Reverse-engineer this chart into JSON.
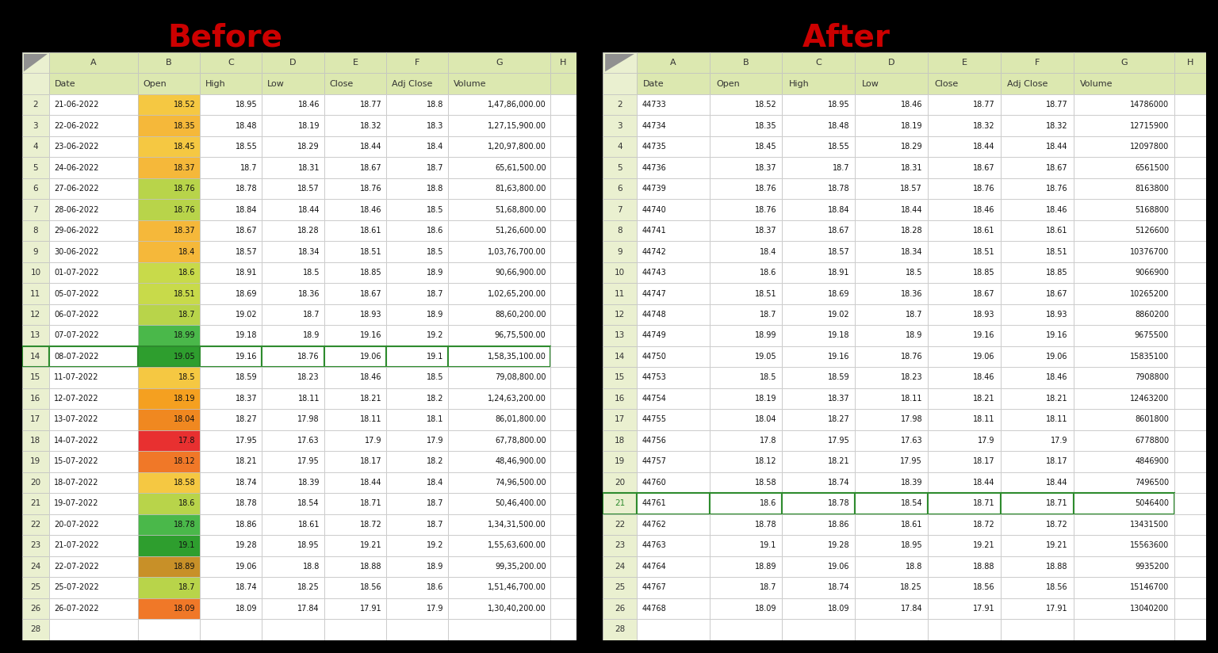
{
  "title_before": "Before",
  "title_after": "After",
  "background_color": "#000000",
  "title_color": "#cc0000",
  "col_headers": [
    "Date",
    "Open",
    "High",
    "Low",
    "Close",
    "Adj Close",
    "Volume"
  ],
  "before_data": [
    [
      "21-06-2022",
      "18.52",
      "18.95",
      "18.46",
      "18.77",
      "18.8",
      "1,47,86,000.00"
    ],
    [
      "22-06-2022",
      "18.35",
      "18.48",
      "18.19",
      "18.32",
      "18.3",
      "1,27,15,900.00"
    ],
    [
      "23-06-2022",
      "18.45",
      "18.55",
      "18.29",
      "18.44",
      "18.4",
      "1,20,97,800.00"
    ],
    [
      "24-06-2022",
      "18.37",
      "18.7",
      "18.31",
      "18.67",
      "18.7",
      "65,61,500.00"
    ],
    [
      "27-06-2022",
      "18.76",
      "18.78",
      "18.57",
      "18.76",
      "18.8",
      "81,63,800.00"
    ],
    [
      "28-06-2022",
      "18.76",
      "18.84",
      "18.44",
      "18.46",
      "18.5",
      "51,68,800.00"
    ],
    [
      "29-06-2022",
      "18.37",
      "18.67",
      "18.28",
      "18.61",
      "18.6",
      "51,26,600.00"
    ],
    [
      "30-06-2022",
      "18.4",
      "18.57",
      "18.34",
      "18.51",
      "18.5",
      "1,03,76,700.00"
    ],
    [
      "01-07-2022",
      "18.6",
      "18.91",
      "18.5",
      "18.85",
      "18.9",
      "90,66,900.00"
    ],
    [
      "05-07-2022",
      "18.51",
      "18.69",
      "18.36",
      "18.67",
      "18.7",
      "1,02,65,200.00"
    ],
    [
      "06-07-2022",
      "18.7",
      "19.02",
      "18.7",
      "18.93",
      "18.9",
      "88,60,200.00"
    ],
    [
      "07-07-2022",
      "18.99",
      "19.18",
      "18.9",
      "19.16",
      "19.2",
      "96,75,500.00"
    ],
    [
      "08-07-2022",
      "19.05",
      "19.16",
      "18.76",
      "19.06",
      "19.1",
      "1,58,35,100.00"
    ],
    [
      "11-07-2022",
      "18.5",
      "18.59",
      "18.23",
      "18.46",
      "18.5",
      "79,08,800.00"
    ],
    [
      "12-07-2022",
      "18.19",
      "18.37",
      "18.11",
      "18.21",
      "18.2",
      "1,24,63,200.00"
    ],
    [
      "13-07-2022",
      "18.04",
      "18.27",
      "17.98",
      "18.11",
      "18.1",
      "86,01,800.00"
    ],
    [
      "14-07-2022",
      "17.8",
      "17.95",
      "17.63",
      "17.9",
      "17.9",
      "67,78,800.00"
    ],
    [
      "15-07-2022",
      "18.12",
      "18.21",
      "17.95",
      "18.17",
      "18.2",
      "48,46,900.00"
    ],
    [
      "18-07-2022",
      "18.58",
      "18.74",
      "18.39",
      "18.44",
      "18.4",
      "74,96,500.00"
    ],
    [
      "19-07-2022",
      "18.6",
      "18.78",
      "18.54",
      "18.71",
      "18.7",
      "50,46,400.00"
    ],
    [
      "20-07-2022",
      "18.78",
      "18.86",
      "18.61",
      "18.72",
      "18.7",
      "1,34,31,500.00"
    ],
    [
      "21-07-2022",
      "19.1",
      "19.28",
      "18.95",
      "19.21",
      "19.2",
      "1,55,63,600.00"
    ],
    [
      "22-07-2022",
      "18.89",
      "19.06",
      "18.8",
      "18.88",
      "18.9",
      "99,35,200.00"
    ],
    [
      "25-07-2022",
      "18.7",
      "18.74",
      "18.25",
      "18.56",
      "18.6",
      "1,51,46,700.00"
    ],
    [
      "26-07-2022",
      "18.09",
      "18.09",
      "17.84",
      "17.91",
      "17.9",
      "1,30,40,200.00"
    ]
  ],
  "after_data": [
    [
      "44733",
      "18.52",
      "18.95",
      "18.46",
      "18.77",
      "18.77",
      "14786000"
    ],
    [
      "44734",
      "18.35",
      "18.48",
      "18.19",
      "18.32",
      "18.32",
      "12715900"
    ],
    [
      "44735",
      "18.45",
      "18.55",
      "18.29",
      "18.44",
      "18.44",
      "12097800"
    ],
    [
      "44736",
      "18.37",
      "18.7",
      "18.31",
      "18.67",
      "18.67",
      "6561500"
    ],
    [
      "44739",
      "18.76",
      "18.78",
      "18.57",
      "18.76",
      "18.76",
      "8163800"
    ],
    [
      "44740",
      "18.76",
      "18.84",
      "18.44",
      "18.46",
      "18.46",
      "5168800"
    ],
    [
      "44741",
      "18.37",
      "18.67",
      "18.28",
      "18.61",
      "18.61",
      "5126600"
    ],
    [
      "44742",
      "18.4",
      "18.57",
      "18.34",
      "18.51",
      "18.51",
      "10376700"
    ],
    [
      "44743",
      "18.6",
      "18.91",
      "18.5",
      "18.85",
      "18.85",
      "9066900"
    ],
    [
      "44747",
      "18.51",
      "18.69",
      "18.36",
      "18.67",
      "18.67",
      "10265200"
    ],
    [
      "44748",
      "18.7",
      "19.02",
      "18.7",
      "18.93",
      "18.93",
      "8860200"
    ],
    [
      "44749",
      "18.99",
      "19.18",
      "18.9",
      "19.16",
      "19.16",
      "9675500"
    ],
    [
      "44750",
      "19.05",
      "19.16",
      "18.76",
      "19.06",
      "19.06",
      "15835100"
    ],
    [
      "44753",
      "18.5",
      "18.59",
      "18.23",
      "18.46",
      "18.46",
      "7908800"
    ],
    [
      "44754",
      "18.19",
      "18.37",
      "18.11",
      "18.21",
      "18.21",
      "12463200"
    ],
    [
      "44755",
      "18.04",
      "18.27",
      "17.98",
      "18.11",
      "18.11",
      "8601800"
    ],
    [
      "44756",
      "17.8",
      "17.95",
      "17.63",
      "17.9",
      "17.9",
      "6778800"
    ],
    [
      "44757",
      "18.12",
      "18.21",
      "17.95",
      "18.17",
      "18.17",
      "4846900"
    ],
    [
      "44760",
      "18.58",
      "18.74",
      "18.39",
      "18.44",
      "18.44",
      "7496500"
    ],
    [
      "44761",
      "18.6",
      "18.78",
      "18.54",
      "18.71",
      "18.71",
      "5046400"
    ],
    [
      "44762",
      "18.78",
      "18.86",
      "18.61",
      "18.72",
      "18.72",
      "13431500"
    ],
    [
      "44763",
      "19.1",
      "19.28",
      "18.95",
      "19.21",
      "19.21",
      "15563600"
    ],
    [
      "44764",
      "18.89",
      "19.06",
      "18.8",
      "18.88",
      "18.88",
      "9935200"
    ],
    [
      "44767",
      "18.7",
      "18.74",
      "18.25",
      "18.56",
      "18.56",
      "15146700"
    ],
    [
      "44768",
      "18.09",
      "18.09",
      "17.84",
      "17.91",
      "17.91",
      "13040200"
    ]
  ],
  "before_b_colors": [
    "#f5c842",
    "#f5b83a",
    "#f5c842",
    "#f5b83a",
    "#b8d44a",
    "#b8d44a",
    "#f5b83a",
    "#f5b83a",
    "#c8da4a",
    "#c8da4a",
    "#b8d44a",
    "#4ab84a",
    "#2e9e2e",
    "#f5c842",
    "#f5a020",
    "#f08820",
    "#e83030",
    "#f07828",
    "#f5c842",
    "#b8d44a",
    "#4ab84a",
    "#2e9e2e",
    "#c89028",
    "#b8d44a",
    "#f07828"
  ],
  "header_col_bg": "#dce8b0",
  "header_row_bg": "#dce8b0",
  "row_num_bg": "#eaf0d0",
  "cell_bg": "#ffffff",
  "border_color": "#c8c8c8",
  "green_border": "#2e8b2e",
  "triangle_color": "#909090",
  "before_special_row": 12,
  "after_special_row": 19
}
